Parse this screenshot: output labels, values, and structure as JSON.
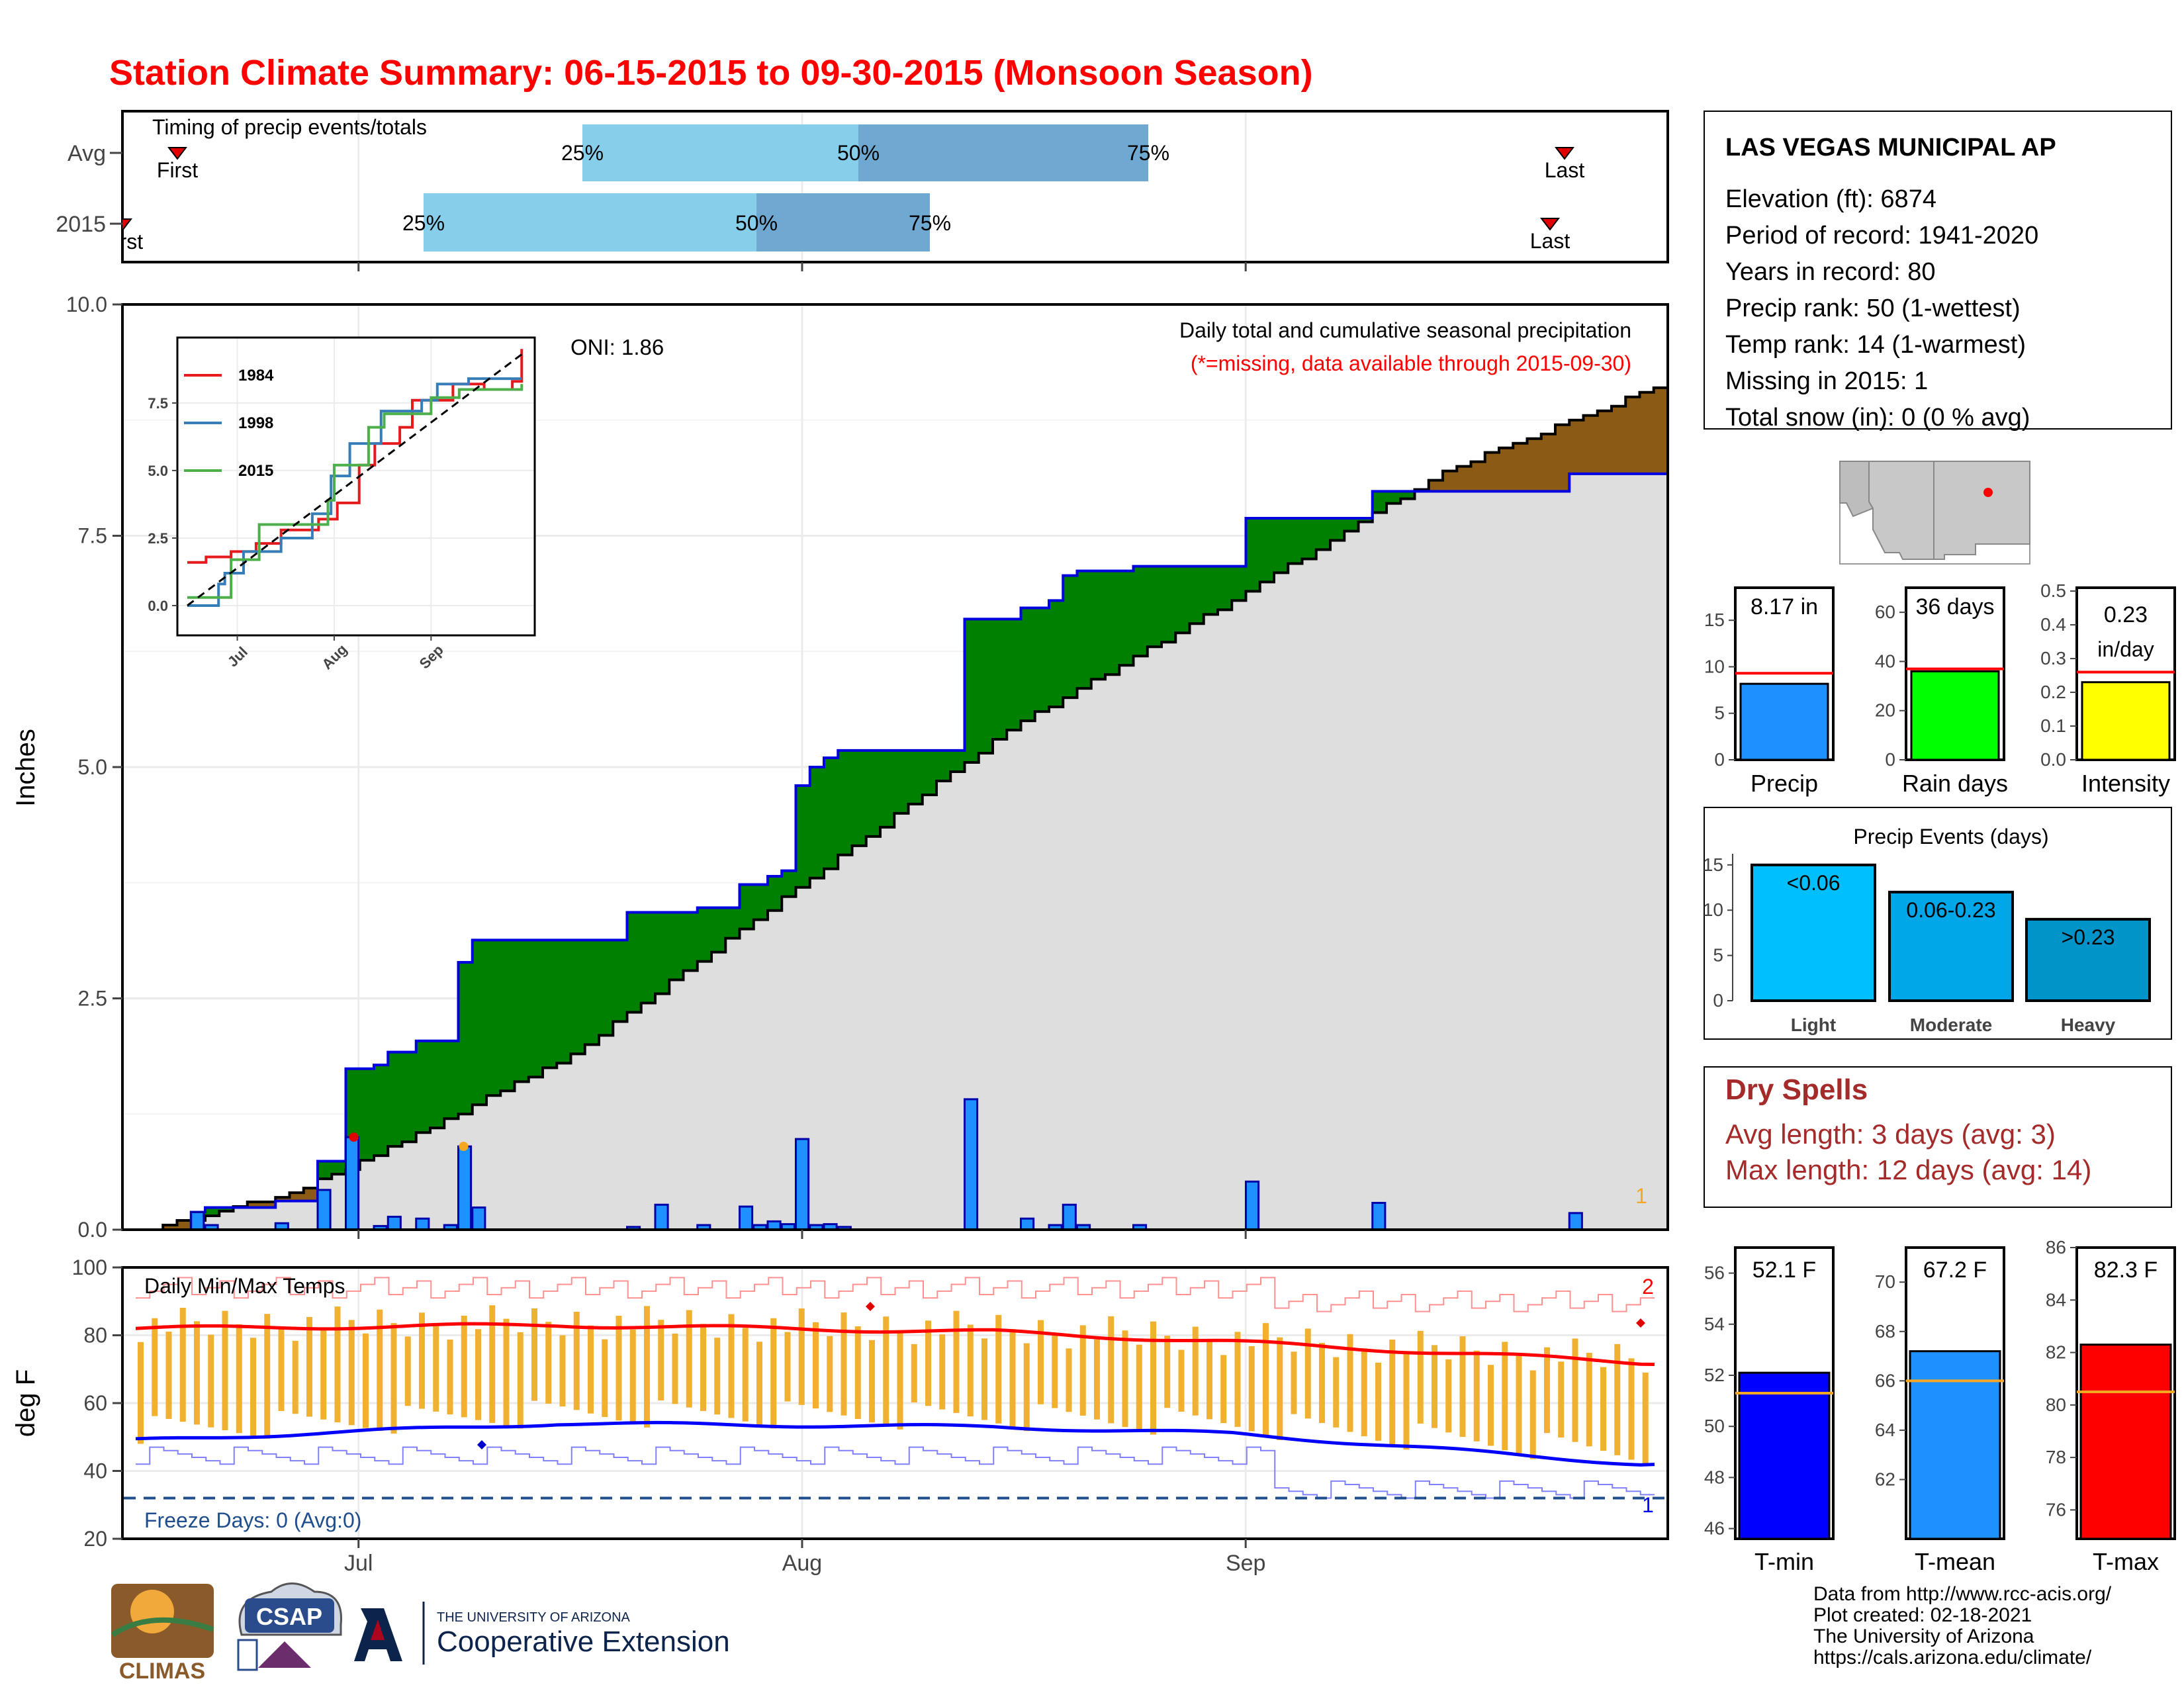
{
  "title": "Station Climate Summary: 06-15-2015 to 09-30-2015 (Monsoon Season)",
  "timing": {
    "title": "Timing of precip events/totals",
    "rows": [
      "Avg",
      "2015"
    ],
    "avg": {
      "first_label": "First",
      "last_label": "Last",
      "q25": "25%",
      "q50": "50%",
      "q75": "75%"
    },
    "yr": {
      "first_label": "First",
      "last_label": "Last",
      "q25": "25%",
      "q50": "50%",
      "q75": "75%"
    }
  },
  "x_axis": {
    "ticks": [
      "Jul",
      "Aug",
      "Sep"
    ]
  },
  "precip": {
    "ylabel": "Inches",
    "yticks": [
      "0.0",
      "2.5",
      "5.0",
      "7.5",
      "10.0"
    ],
    "oni": "ONI: 1.86",
    "caption": "Daily total and cumulative seasonal precipitation",
    "missing_note": "(*=missing, data available through 2015-09-30)",
    "missing_count": "1"
  },
  "inset": {
    "yticks": [
      "0.0",
      "2.5",
      "5.0",
      "7.5"
    ],
    "xticks": [
      "Jul",
      "Aug",
      "Sep"
    ],
    "legend": [
      {
        "label": "1984",
        "color": "#e41a1c"
      },
      {
        "label": "1998",
        "color": "#377eb8"
      },
      {
        "label": "2015",
        "color": "#4daf4a"
      }
    ]
  },
  "temps": {
    "ylabel": "deg F",
    "title": "Daily Min/Max Temps",
    "yticks": [
      "20",
      "40",
      "60",
      "80",
      "100"
    ],
    "freeze": "Freeze Days: 0 (Avg:0)",
    "count_max": "2",
    "count_min": "1"
  },
  "station": {
    "name": "LAS VEGAS MUNICIPAL AP",
    "lines": [
      "Elevation (ft): 6874",
      "Period of record: 1941-2020",
      "Years in record: 80",
      "Precip rank: 50 (1-wettest)",
      "Temp rank: 14 (1-warmest)",
      "Missing in 2015: 1",
      "Total snow (in): 0 (0 % avg)"
    ]
  },
  "mini_bars": [
    {
      "label": "Precip",
      "value_text": "8.17 in",
      "value": 8.17,
      "avg": 9.3,
      "ymax": 18.5,
      "ticks": [
        "0",
        "5",
        "10",
        "15"
      ],
      "color": "#1e90ff"
    },
    {
      "label": "Rain days",
      "value_text": "36 days",
      "value": 36,
      "avg": 37,
      "ymax": 70,
      "ticks": [
        "0",
        "20",
        "40",
        "60"
      ],
      "color": "#00ff00"
    },
    {
      "label": "Intensity",
      "value_text": "0.23 in/day",
      "value": 0.23,
      "avg": 0.26,
      "ymax": 0.51,
      "ticks": [
        "0.0",
        "0.1",
        "0.2",
        "0.3",
        "0.4",
        "0.5"
      ],
      "color": "#ffff00"
    }
  ],
  "events": {
    "title": "Precip Events (days)",
    "yticks": [
      "0",
      "5",
      "10",
      "15"
    ],
    "bars": [
      {
        "label": "Light",
        "text": "<0.06",
        "value": 15,
        "color": "#00bfff"
      },
      {
        "label": "Moderate",
        "text": "0.06-0.23",
        "value": 12,
        "color": "#00a7e8"
      },
      {
        "label": "Heavy",
        "text": ">0.23",
        "value": 9,
        "color": "#0094c8"
      }
    ]
  },
  "dry_spells": {
    "title": "Dry Spells",
    "avg": "Avg length: 3 days (avg: 3)",
    "max": "Max length: 12 days (avg: 14)"
  },
  "temp_bars": [
    {
      "label": "T-min",
      "value_text": "52.1 F",
      "value": 52.1,
      "avg": 51.3,
      "ymin": 45.6,
      "ymax": 57.0,
      "ticks": [
        "46",
        "48",
        "50",
        "52",
        "54",
        "56"
      ],
      "color": "#0000ff"
    },
    {
      "label": "T-mean",
      "value_text": "67.2 F",
      "value": 67.2,
      "avg": 66.0,
      "ymin": 59.6,
      "ymax": 71.4,
      "ticks": [
        "62",
        "64",
        "66",
        "68",
        "70"
      ],
      "color": "#1e90ff"
    },
    {
      "label": "T-max",
      "value_text": "82.3 F",
      "value": 82.3,
      "avg": 80.5,
      "ymin": 74.9,
      "ymax": 86.0,
      "ticks": [
        "76",
        "78",
        "80",
        "82",
        "84",
        "86"
      ],
      "color": "#ff0000"
    }
  ],
  "footer": {
    "lines": [
      "Data from http://www.rcc-acis.org/",
      "Plot created: 02-18-2021",
      "The University of Arizona",
      "https://cals.arizona.edu/climate/"
    ],
    "logo_climas": "CLIMAS",
    "logo_csap": "CSAP",
    "logo_ua_small": "THE UNIVERSITY OF ARIZONA",
    "logo_ua_big": "Cooperative Extension"
  },
  "chart_data": {
    "type": "area",
    "title": "Station Climate Summary: 06-15-2015 to 09-30-2015 (Monsoon Season)",
    "x_range": [
      "2015-06-15",
      "2015-09-30"
    ],
    "precip": {
      "ylabel": "Inches",
      "ylim": [
        0,
        10
      ],
      "daily_2015": [
        {
          "date": "2015-06-18",
          "value": 0.19
        },
        {
          "date": "2015-06-19",
          "value": 0.05
        },
        {
          "date": "2015-06-24",
          "value": 0.07
        },
        {
          "date": "2015-06-27",
          "value": 0.43
        },
        {
          "date": "2015-06-29",
          "value": 1.0
        },
        {
          "date": "2015-07-01",
          "value": 0.04
        },
        {
          "date": "2015-07-02",
          "value": 0.14
        },
        {
          "date": "2015-07-04",
          "value": 0.12
        },
        {
          "date": "2015-07-06",
          "value": 0.05
        },
        {
          "date": "2015-07-07",
          "value": 0.9
        },
        {
          "date": "2015-07-08",
          "value": 0.24
        },
        {
          "date": "2015-07-19",
          "value": 0.03
        },
        {
          "date": "2015-07-21",
          "value": 0.27
        },
        {
          "date": "2015-07-24",
          "value": 0.05
        },
        {
          "date": "2015-07-27",
          "value": 0.25
        },
        {
          "date": "2015-07-28",
          "value": 0.05
        },
        {
          "date": "2015-07-29",
          "value": 0.09
        },
        {
          "date": "2015-07-30",
          "value": 0.06
        },
        {
          "date": "2015-07-31",
          "value": 0.98
        },
        {
          "date": "2015-08-01",
          "value": 0.05
        },
        {
          "date": "2015-08-02",
          "value": 0.06
        },
        {
          "date": "2015-08-03",
          "value": 0.03
        },
        {
          "date": "2015-08-12",
          "value": 1.41
        },
        {
          "date": "2015-08-16",
          "value": 0.12
        },
        {
          "date": "2015-08-18",
          "value": 0.05
        },
        {
          "date": "2015-08-19",
          "value": 0.27
        },
        {
          "date": "2015-08-20",
          "value": 0.05
        },
        {
          "date": "2015-08-24",
          "value": 0.05
        },
        {
          "date": "2015-09-01",
          "value": 0.52
        },
        {
          "date": "2015-09-10",
          "value": 0.29
        },
        {
          "date": "2015-09-24",
          "value": 0.18
        }
      ],
      "cumulative_2015": [
        {
          "date": "2015-06-15",
          "value": 0.0
        },
        {
          "date": "2015-06-18",
          "value": 0.19
        },
        {
          "date": "2015-06-19",
          "value": 0.24
        },
        {
          "date": "2015-06-24",
          "value": 0.31
        },
        {
          "date": "2015-06-27",
          "value": 0.74
        },
        {
          "date": "2015-06-29",
          "value": 1.74
        },
        {
          "date": "2015-07-01",
          "value": 1.78
        },
        {
          "date": "2015-07-02",
          "value": 1.92
        },
        {
          "date": "2015-07-04",
          "value": 2.04
        },
        {
          "date": "2015-07-07",
          "value": 2.89
        },
        {
          "date": "2015-07-08",
          "value": 3.13
        },
        {
          "date": "2015-07-19",
          "value": 3.43
        },
        {
          "date": "2015-07-24",
          "value": 3.48
        },
        {
          "date": "2015-07-27",
          "value": 3.73
        },
        {
          "date": "2015-07-29",
          "value": 3.82
        },
        {
          "date": "2015-07-30",
          "value": 3.88
        },
        {
          "date": "2015-07-31",
          "value": 4.8
        },
        {
          "date": "2015-08-01",
          "value": 5.0
        },
        {
          "date": "2015-08-02",
          "value": 5.1
        },
        {
          "date": "2015-08-03",
          "value": 5.18
        },
        {
          "date": "2015-08-12",
          "value": 6.6
        },
        {
          "date": "2015-08-16",
          "value": 6.72
        },
        {
          "date": "2015-08-18",
          "value": 6.8
        },
        {
          "date": "2015-08-19",
          "value": 7.07
        },
        {
          "date": "2015-08-20",
          "value": 7.12
        },
        {
          "date": "2015-08-24",
          "value": 7.17
        },
        {
          "date": "2015-09-01",
          "value": 7.69
        },
        {
          "date": "2015-09-10",
          "value": 7.98
        },
        {
          "date": "2015-09-24",
          "value": 8.17
        },
        {
          "date": "2015-09-30",
          "value": 8.17
        }
      ],
      "cumulative_avg": [
        {
          "date": "2015-06-15",
          "value": 0.0
        },
        {
          "date": "2015-06-25",
          "value": 0.4
        },
        {
          "date": "2015-07-01",
          "value": 0.8
        },
        {
          "date": "2015-07-15",
          "value": 1.9
        },
        {
          "date": "2015-08-01",
          "value": 3.8
        },
        {
          "date": "2015-08-15",
          "value": 5.4
        },
        {
          "date": "2015-09-01",
          "value": 6.9
        },
        {
          "date": "2015-09-15",
          "value": 8.2
        },
        {
          "date": "2015-09-30",
          "value": 9.1
        }
      ]
    },
    "temps": {
      "ylabel": "deg F",
      "ylim": [
        20,
        100
      ],
      "freeze_line": 32,
      "avg_tmax": [
        {
          "date": "2015-06-15",
          "value": 82
        },
        {
          "date": "2015-07-15",
          "value": 83
        },
        {
          "date": "2015-08-15",
          "value": 81
        },
        {
          "date": "2015-09-01",
          "value": 78
        },
        {
          "date": "2015-09-30",
          "value": 72
        }
      ],
      "avg_tmin": [
        {
          "date": "2015-06-15",
          "value": 49
        },
        {
          "date": "2015-07-15",
          "value": 54
        },
        {
          "date": "2015-08-15",
          "value": 53
        },
        {
          "date": "2015-09-01",
          "value": 51
        },
        {
          "date": "2015-09-30",
          "value": 42
        }
      ],
      "record_high_approx": 93,
      "record_low_approx": 38
    }
  }
}
